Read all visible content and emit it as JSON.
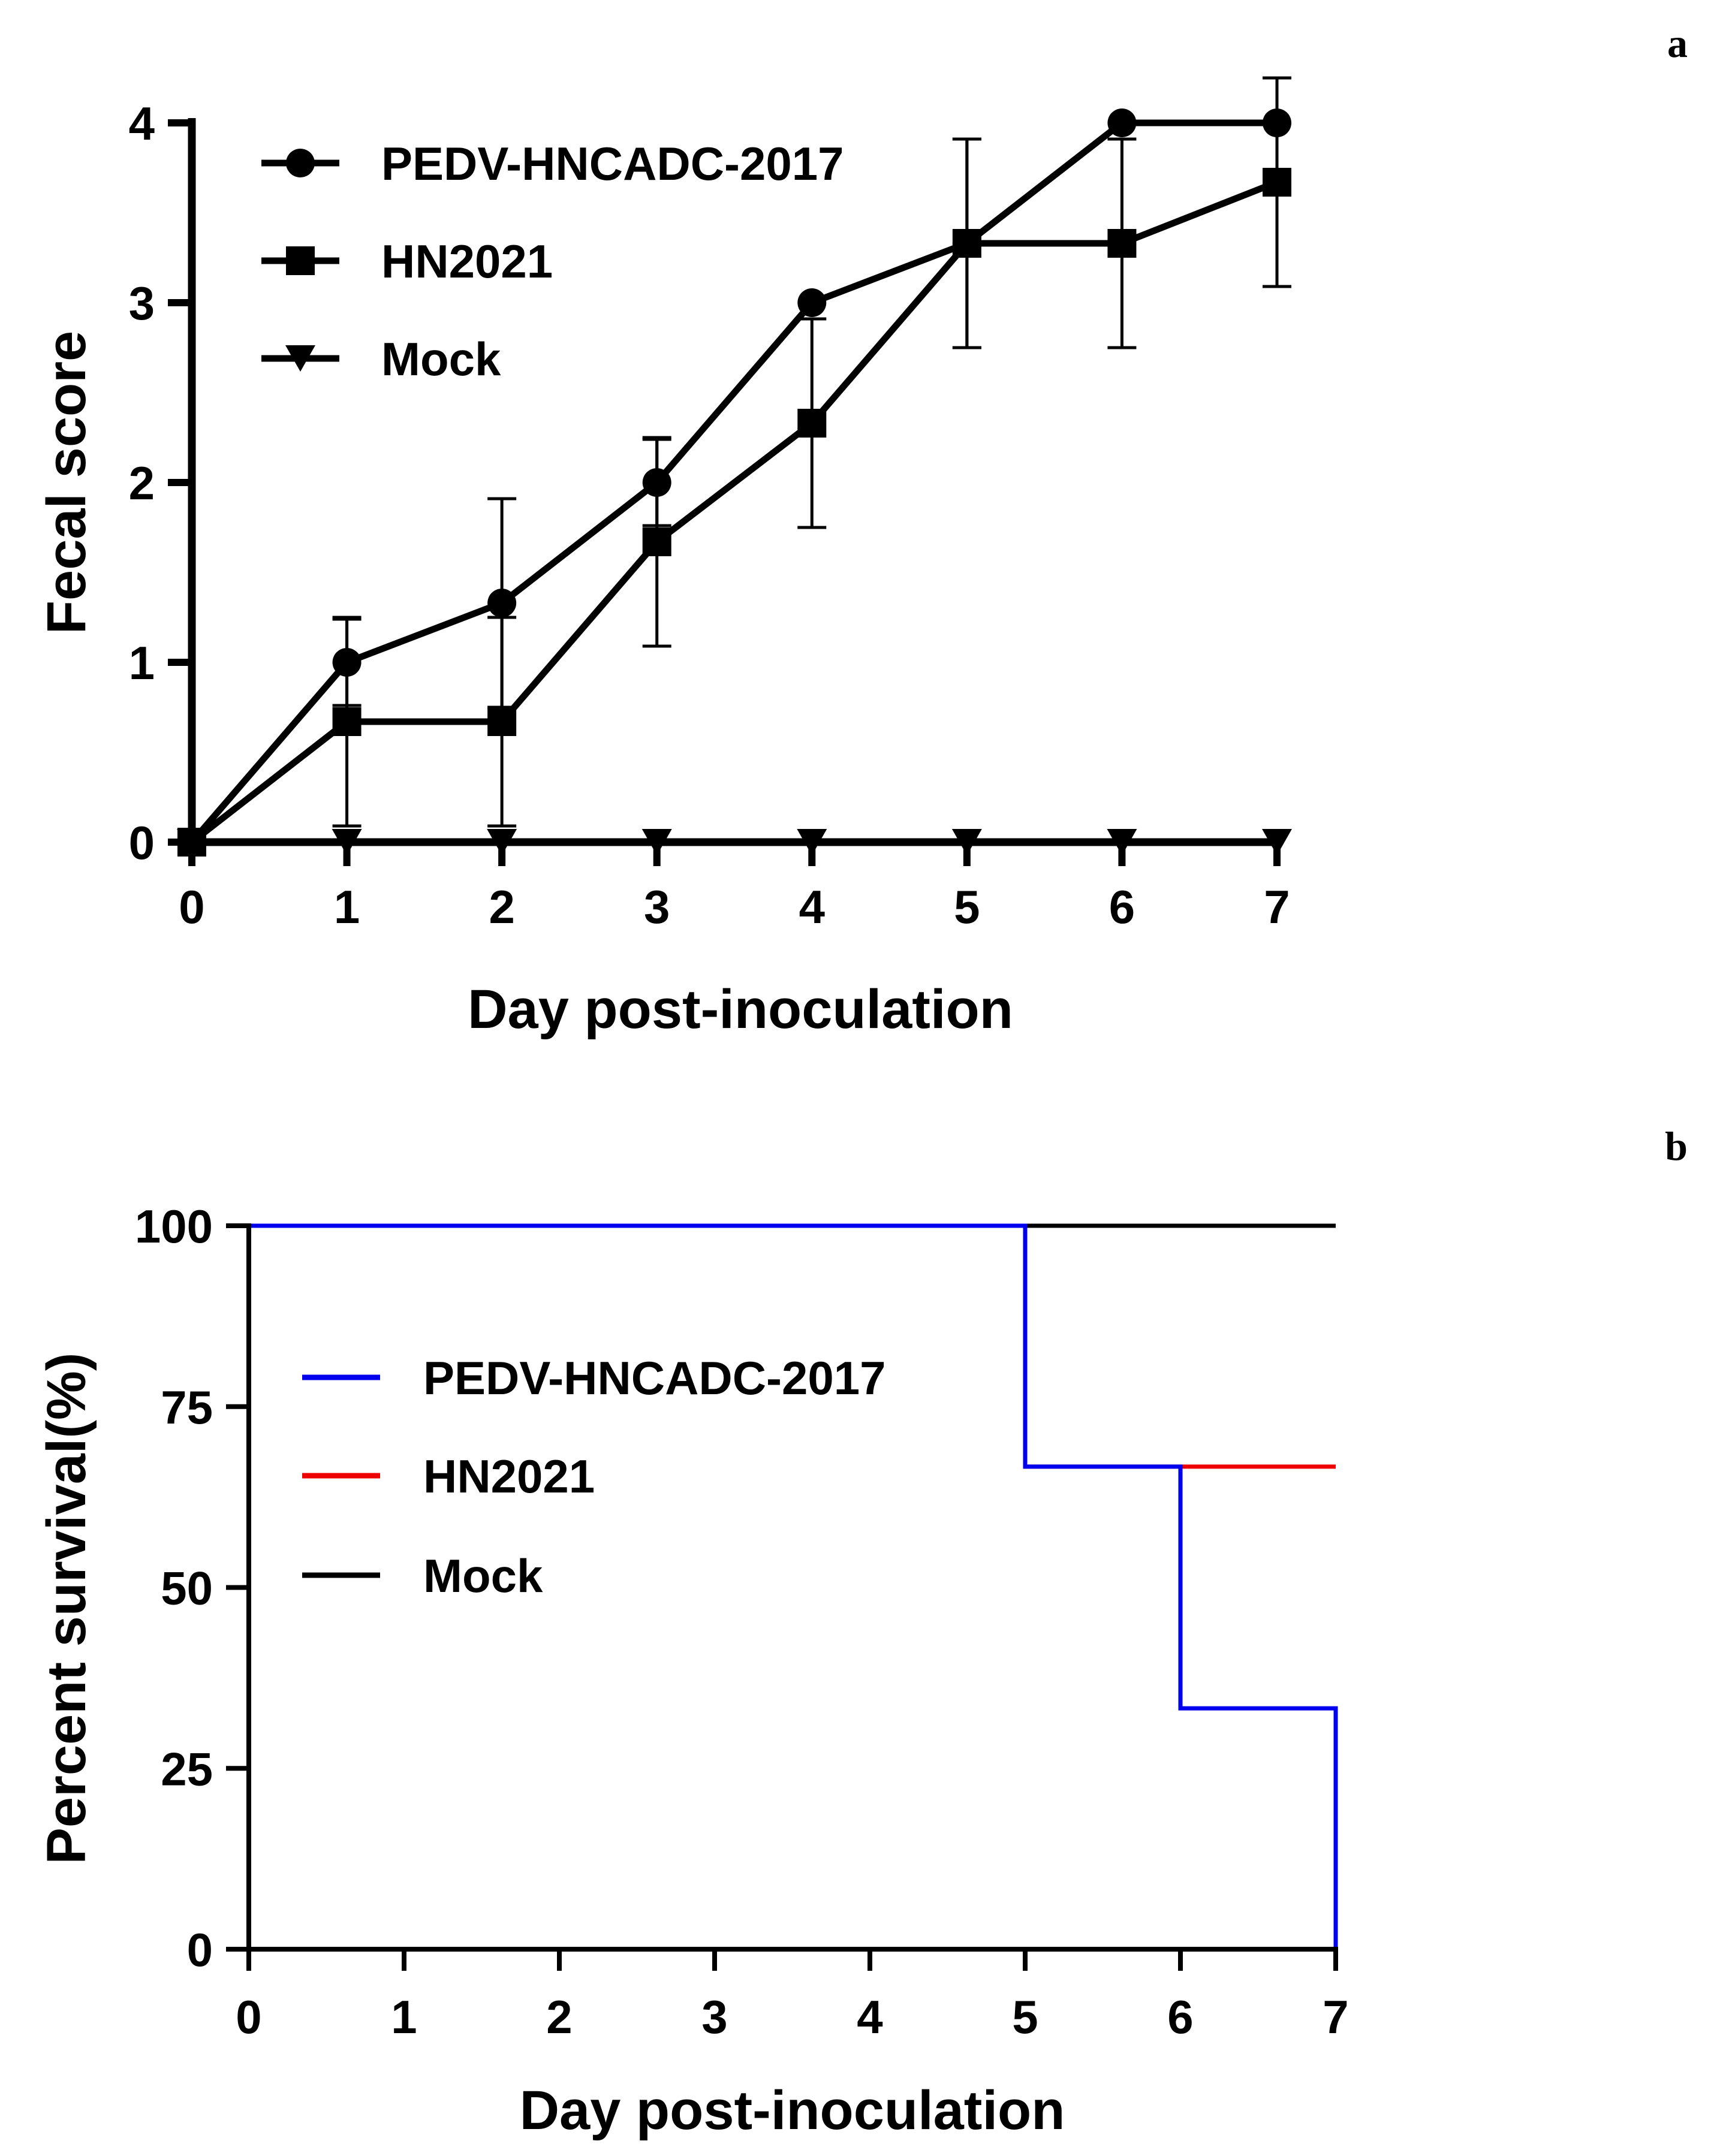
{
  "panels": {
    "a": {
      "label": "a"
    },
    "b": {
      "label": "b"
    }
  },
  "chart_data": [
    {
      "panel": "a",
      "type": "line",
      "title": "",
      "xlabel": "Day post-inoculation",
      "ylabel": "Fecal score",
      "x": [
        0,
        1,
        2,
        3,
        4,
        5,
        6,
        7
      ],
      "xlim": [
        0,
        7
      ],
      "ylim": [
        0,
        4
      ],
      "xticks": [
        "0",
        "1",
        "2",
        "3",
        "4",
        "5",
        "6",
        "7"
      ],
      "yticks": [
        "0",
        "1",
        "2",
        "3",
        "4"
      ],
      "grid": false,
      "legend_position": "top-left",
      "series": [
        {
          "name": "PEDV-HNCADC-2017",
          "marker": "circle",
          "color": "#000000",
          "values": [
            0,
            1.0,
            1.33,
            2.0,
            3.0,
            3.33,
            4.0,
            4.0
          ],
          "error": [
            0,
            0.24,
            0.58,
            0.24,
            0,
            0.58,
            0,
            0
          ]
        },
        {
          "name": "HN2021",
          "marker": "square",
          "color": "#000000",
          "values": [
            0,
            0.67,
            0.67,
            1.67,
            2.33,
            3.33,
            3.33,
            3.67
          ],
          "error": [
            0,
            0.58,
            0.58,
            0.58,
            0.58,
            0.58,
            0.58,
            0.58
          ]
        },
        {
          "name": "Mock",
          "marker": "triangle-down",
          "color": "#000000",
          "values": [
            0,
            0,
            0,
            0,
            0,
            0,
            0,
            0
          ],
          "error": [
            0,
            0,
            0,
            0,
            0,
            0,
            0,
            0
          ]
        }
      ]
    },
    {
      "panel": "b",
      "type": "line",
      "subtype": "step",
      "title": "",
      "xlabel": "Day post-inoculation",
      "ylabel": "Percent survival(%)",
      "xlim": [
        0,
        7
      ],
      "ylim": [
        0,
        100
      ],
      "xticks": [
        "0",
        "1",
        "2",
        "3",
        "4",
        "5",
        "6",
        "7"
      ],
      "yticks": [
        "0",
        "25",
        "50",
        "75",
        "100"
      ],
      "grid": false,
      "legend_position": "middle-left",
      "series": [
        {
          "name": "PEDV-HNCADC-2017",
          "color": "#0000ee",
          "x": [
            0,
            5,
            6,
            7
          ],
          "values": [
            100,
            66.7,
            33.3,
            0
          ]
        },
        {
          "name": "HN2021",
          "color": "#ee0000",
          "x": [
            0,
            5,
            7
          ],
          "values": [
            100,
            66.7,
            66.7
          ]
        },
        {
          "name": "Mock",
          "color": "#000000",
          "x": [
            0,
            7
          ],
          "values": [
            100,
            100
          ]
        }
      ]
    }
  ]
}
